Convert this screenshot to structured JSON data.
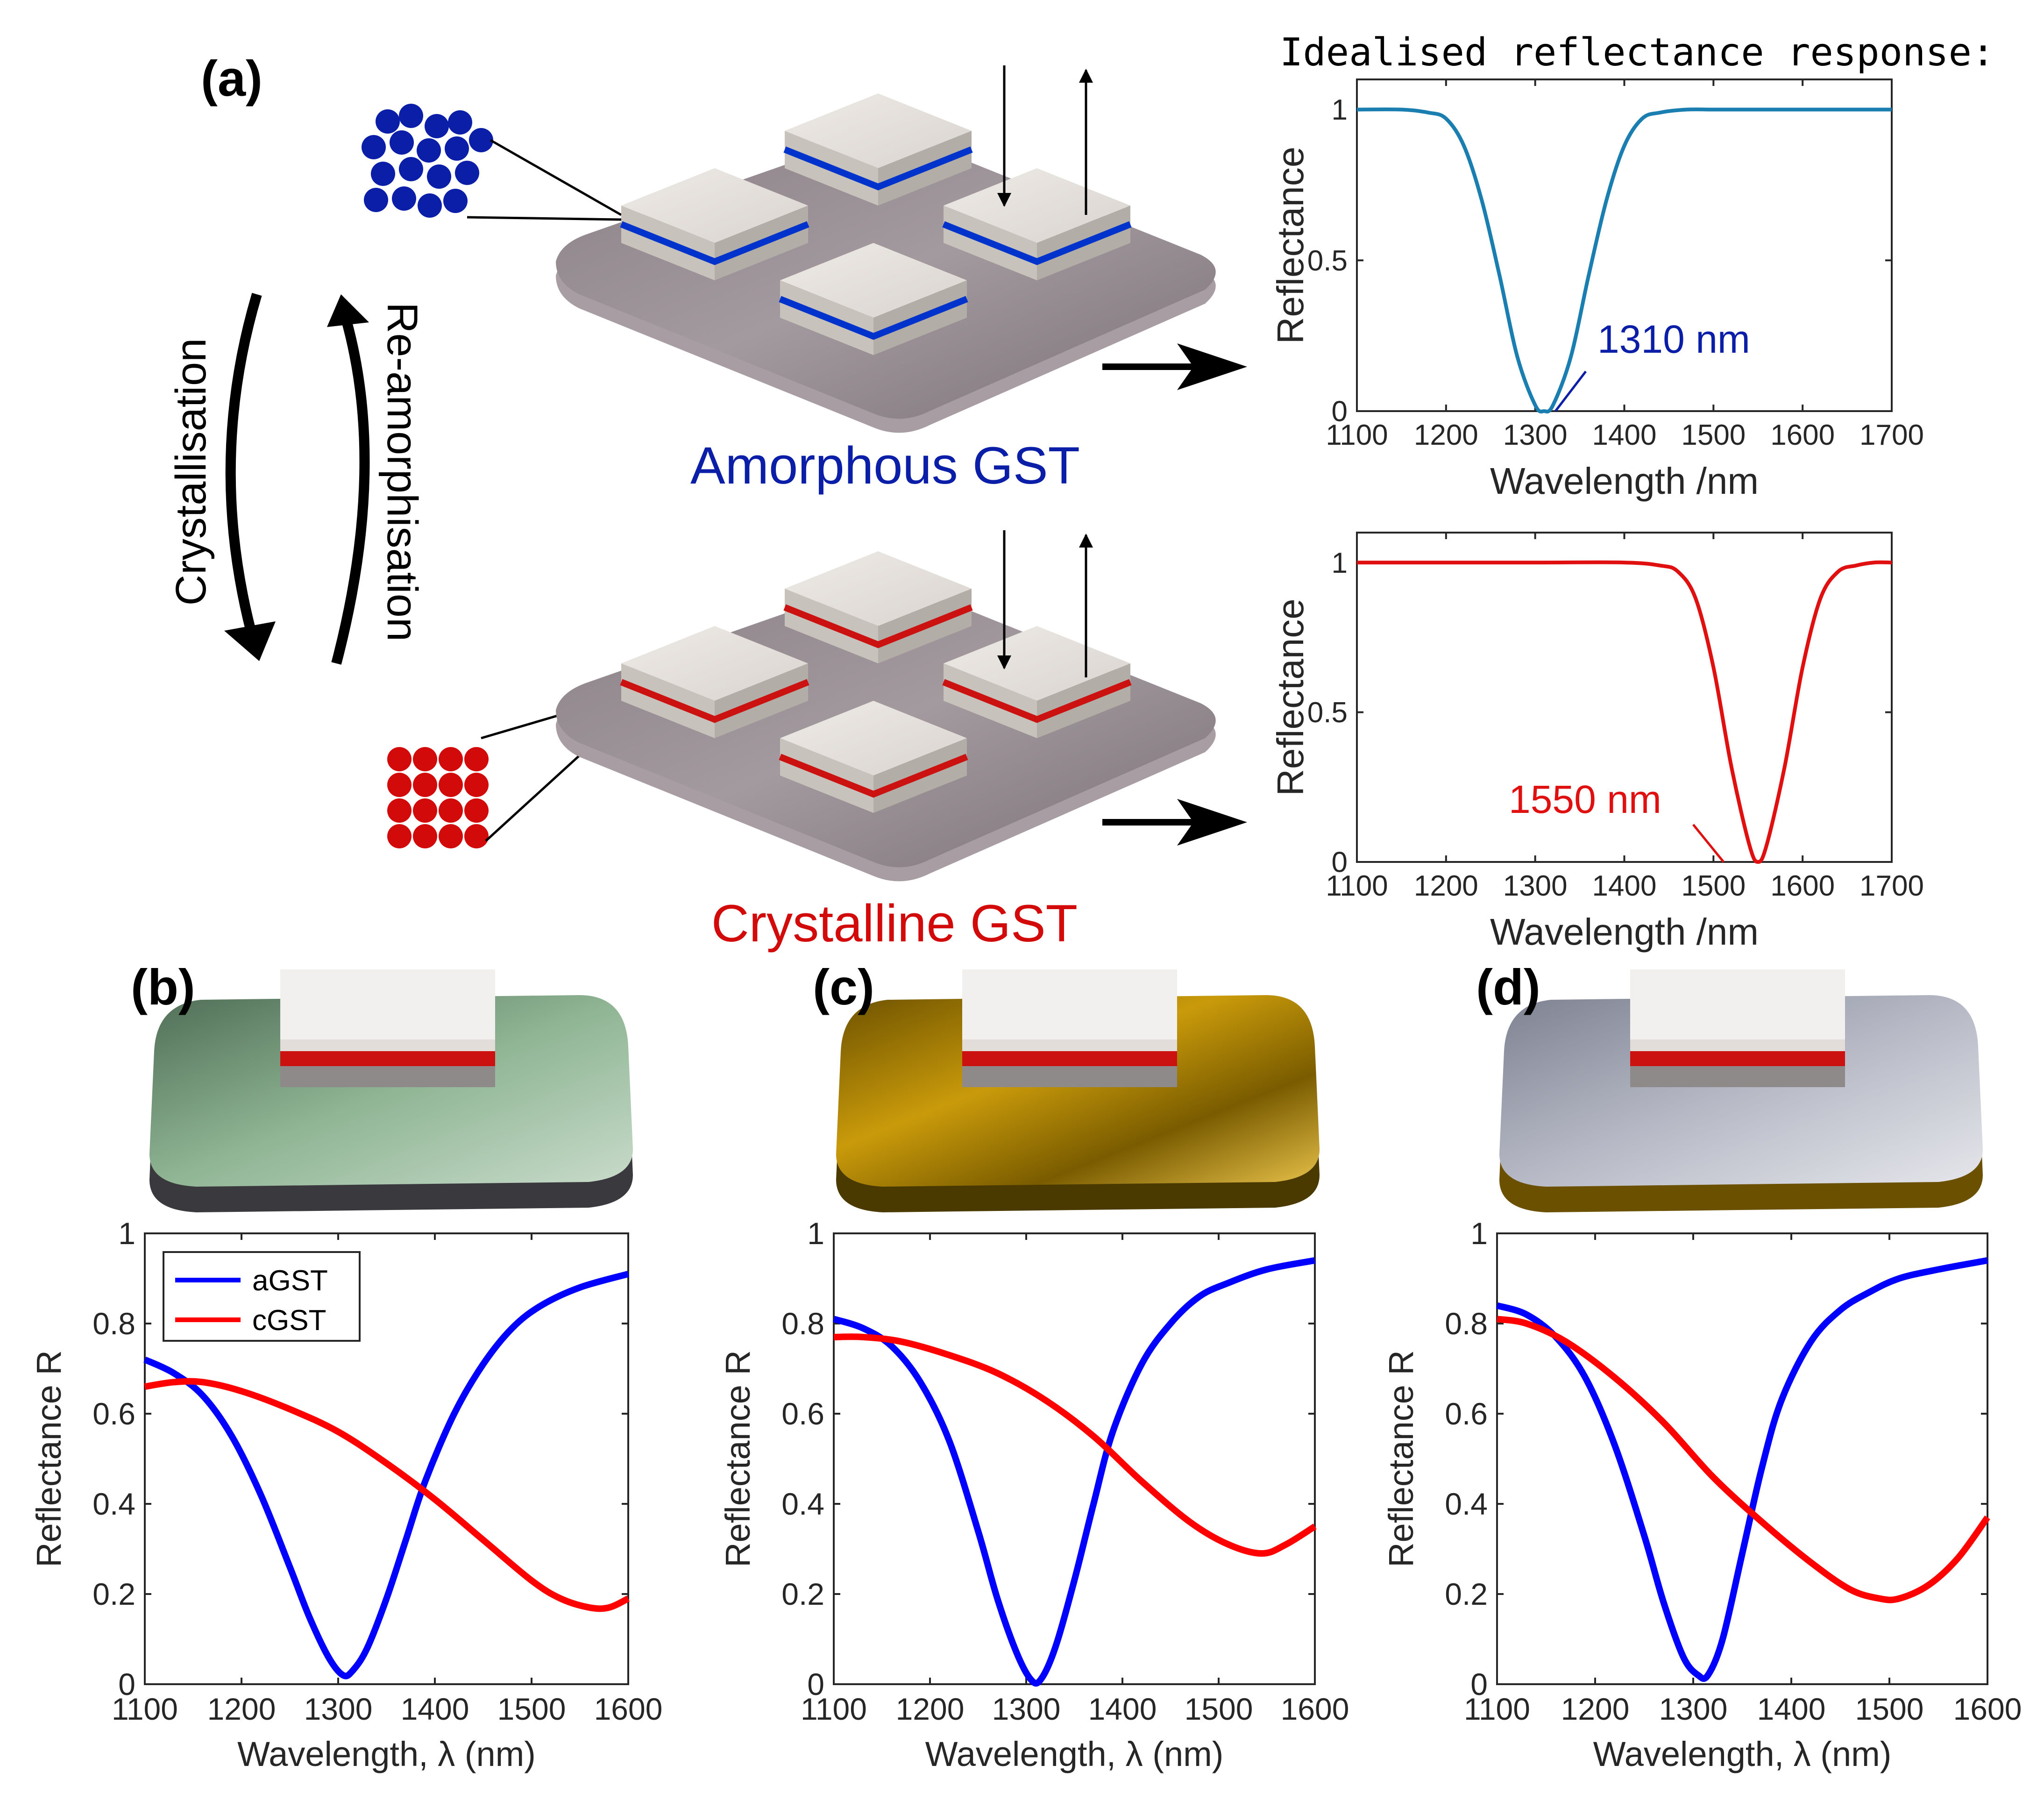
{
  "panel_labels": {
    "a": "(a)",
    "b": "(b)",
    "c": "(c)",
    "d": "(d)"
  },
  "schematic": {
    "amorphous_label": "Amorphous GST",
    "crystalline_label": "Crystalline GST",
    "crystallisation_label": "Crystallisation",
    "reamorphisation_label": "Re-amorphisation",
    "idealised_title": "Idealised reflectance response:"
  },
  "colors": {
    "amorphous": "#0a1ea8",
    "crystalline": "#d20a0a",
    "ideal_blue": "#1a7fb0",
    "ideal_red": "#e01010",
    "blue_line": "#0000ff",
    "red_line": "#ff0000"
  },
  "chart_data": [
    {
      "id": "ideal-amorphous",
      "type": "line",
      "title": "",
      "xlabel": "Wavelength /nm",
      "ylabel": "Reflectance",
      "xlim": [
        1100,
        1700
      ],
      "ylim": [
        0,
        1.1
      ],
      "xticks": [
        1100,
        1200,
        1300,
        1400,
        1500,
        1600,
        1700
      ],
      "yticks": [
        0,
        0.5,
        1
      ],
      "ytick_labels": [
        "0",
        "0.5",
        "1"
      ],
      "series": [
        {
          "name": "amorphous",
          "color": "#1a7fb0",
          "x": [
            1100,
            1150,
            1180,
            1200,
            1220,
            1240,
            1260,
            1280,
            1300,
            1310,
            1320,
            1340,
            1360,
            1380,
            1400,
            1420,
            1440,
            1470,
            1500,
            1550,
            1600,
            1650,
            1700
          ],
          "y": [
            1.0,
            1.0,
            0.99,
            0.97,
            0.88,
            0.7,
            0.45,
            0.18,
            0.02,
            0.0,
            0.02,
            0.18,
            0.45,
            0.7,
            0.88,
            0.97,
            0.99,
            1.0,
            1.0,
            1.0,
            1.0,
            1.0,
            1.0
          ]
        }
      ],
      "annotation": {
        "text": "1310 nm",
        "x": 1310,
        "y": 0
      }
    },
    {
      "id": "ideal-crystalline",
      "type": "line",
      "title": "",
      "xlabel": "Wavelength /nm",
      "ylabel": "Reflectance",
      "xlim": [
        1100,
        1700
      ],
      "ylim": [
        0,
        1.1
      ],
      "xticks": [
        1100,
        1200,
        1300,
        1400,
        1500,
        1600,
        1700
      ],
      "yticks": [
        0,
        0.5,
        1
      ],
      "ytick_labels": [
        "0",
        "0.5",
        "1"
      ],
      "series": [
        {
          "name": "crystalline",
          "color": "#e01010",
          "x": [
            1100,
            1200,
            1300,
            1400,
            1440,
            1460,
            1480,
            1500,
            1520,
            1540,
            1550,
            1560,
            1580,
            1600,
            1620,
            1640,
            1660,
            1680,
            1700
          ],
          "y": [
            1.0,
            1.0,
            1.0,
            1.0,
            0.99,
            0.97,
            0.88,
            0.65,
            0.32,
            0.06,
            0.0,
            0.06,
            0.32,
            0.65,
            0.88,
            0.97,
            0.99,
            1.0,
            1.0
          ]
        }
      ],
      "annotation": {
        "text": "1550 nm",
        "x": 1550,
        "y": 0
      }
    },
    {
      "id": "panel-b",
      "type": "line",
      "xlabel": "Wavelength, λ (nm)",
      "ylabel": "Reflectance R",
      "xlim": [
        1100,
        1600
      ],
      "ylim": [
        0,
        1
      ],
      "xticks": [
        1100,
        1200,
        1300,
        1400,
        1500,
        1600
      ],
      "yticks": [
        0,
        0.2,
        0.4,
        0.6,
        0.8,
        1
      ],
      "ytick_labels": [
        "0",
        "0.2",
        "0.4",
        "0.6",
        "0.8",
        "1"
      ],
      "legend": {
        "position": "top-left",
        "entries": [
          "aGST",
          "cGST"
        ]
      },
      "series": [
        {
          "name": "aGST",
          "color": "#0000ff",
          "x": [
            1100,
            1130,
            1160,
            1190,
            1220,
            1250,
            1270,
            1290,
            1305,
            1315,
            1330,
            1350,
            1370,
            1390,
            1420,
            1450,
            1480,
            1510,
            1550,
            1600
          ],
          "y": [
            0.72,
            0.69,
            0.64,
            0.55,
            0.42,
            0.26,
            0.15,
            0.06,
            0.02,
            0.03,
            0.08,
            0.19,
            0.32,
            0.45,
            0.6,
            0.71,
            0.79,
            0.84,
            0.88,
            0.91
          ]
        },
        {
          "name": "cGST",
          "color": "#ff0000",
          "x": [
            1100,
            1130,
            1160,
            1200,
            1250,
            1300,
            1350,
            1400,
            1450,
            1500,
            1530,
            1560,
            1580,
            1600
          ],
          "y": [
            0.66,
            0.67,
            0.67,
            0.65,
            0.61,
            0.56,
            0.49,
            0.41,
            0.32,
            0.23,
            0.19,
            0.17,
            0.17,
            0.19
          ]
        }
      ]
    },
    {
      "id": "panel-c",
      "type": "line",
      "xlabel": "Wavelength, λ (nm)",
      "ylabel": "Reflectance R",
      "xlim": [
        1100,
        1600
      ],
      "ylim": [
        0,
        1
      ],
      "xticks": [
        1100,
        1200,
        1300,
        1400,
        1500,
        1600
      ],
      "yticks": [
        0,
        0.2,
        0.4,
        0.6,
        0.8,
        1
      ],
      "ytick_labels": [
        "0",
        "0.2",
        "0.4",
        "0.6",
        "0.8",
        "1"
      ],
      "series": [
        {
          "name": "aGST",
          "color": "#0000ff",
          "x": [
            1100,
            1130,
            1160,
            1190,
            1220,
            1250,
            1270,
            1290,
            1305,
            1315,
            1330,
            1350,
            1370,
            1390,
            1420,
            1450,
            1480,
            1510,
            1550,
            1600
          ],
          "y": [
            0.81,
            0.79,
            0.75,
            0.67,
            0.54,
            0.34,
            0.19,
            0.07,
            0.01,
            0.01,
            0.08,
            0.23,
            0.4,
            0.56,
            0.71,
            0.8,
            0.86,
            0.89,
            0.92,
            0.94
          ]
        },
        {
          "name": "cGST",
          "color": "#ff0000",
          "x": [
            1100,
            1130,
            1170,
            1220,
            1270,
            1320,
            1370,
            1420,
            1470,
            1510,
            1545,
            1570,
            1600
          ],
          "y": [
            0.77,
            0.77,
            0.76,
            0.73,
            0.69,
            0.63,
            0.55,
            0.45,
            0.36,
            0.31,
            0.29,
            0.31,
            0.35
          ]
        }
      ]
    },
    {
      "id": "panel-d",
      "type": "line",
      "xlabel": "Wavelength, λ (nm)",
      "ylabel": "Reflectance R",
      "xlim": [
        1100,
        1600
      ],
      "ylim": [
        0,
        1
      ],
      "xticks": [
        1100,
        1200,
        1300,
        1400,
        1500,
        1600
      ],
      "yticks": [
        0,
        0.2,
        0.4,
        0.6,
        0.8,
        1
      ],
      "ytick_labels": [
        "0",
        "0.2",
        "0.4",
        "0.6",
        "0.8",
        "1"
      ],
      "series": [
        {
          "name": "aGST",
          "color": "#0000ff",
          "x": [
            1100,
            1130,
            1160,
            1190,
            1220,
            1250,
            1270,
            1290,
            1305,
            1315,
            1330,
            1350,
            1370,
            1390,
            1420,
            1450,
            1480,
            1510,
            1550,
            1600
          ],
          "y": [
            0.84,
            0.82,
            0.77,
            0.68,
            0.53,
            0.33,
            0.18,
            0.06,
            0.02,
            0.02,
            0.1,
            0.29,
            0.48,
            0.63,
            0.76,
            0.83,
            0.87,
            0.9,
            0.92,
            0.94
          ]
        },
        {
          "name": "cGST",
          "color": "#ff0000",
          "x": [
            1100,
            1130,
            1170,
            1220,
            1270,
            1320,
            1370,
            1420,
            1460,
            1490,
            1510,
            1540,
            1570,
            1600
          ],
          "y": [
            0.81,
            0.8,
            0.76,
            0.68,
            0.58,
            0.46,
            0.36,
            0.27,
            0.21,
            0.19,
            0.19,
            0.22,
            0.28,
            0.37
          ]
        }
      ]
    }
  ]
}
